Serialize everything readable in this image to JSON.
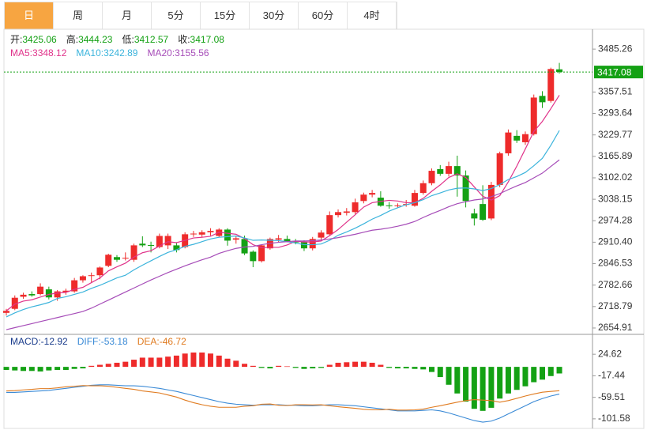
{
  "tabs": [
    "日",
    "周",
    "月",
    "5分",
    "15分",
    "30分",
    "60分",
    "4时"
  ],
  "chart_data": [
    {
      "type": "candlestick",
      "info_labels": [
        "开:",
        "高:",
        "低:",
        "收:"
      ],
      "up_color": "#ee2b2b",
      "down_color": "#14a114",
      "candles": {
        "open": [
          2700,
          2712,
          2748,
          2756,
          2756,
          2770,
          2746,
          2762,
          2764,
          2797,
          2810,
          2812,
          2840,
          2866,
          2862,
          2858,
          2906,
          2902,
          2896,
          2901,
          2901,
          2896,
          2934,
          2933,
          2940,
          2929,
          2948,
          2918,
          2920,
          2882,
          2854,
          2892,
          2918,
          2920,
          2912,
          2910,
          2892,
          2924,
          2934,
          2991,
          2998,
          3000,
          3033,
          3052,
          3043,
          3020,
          3018,
          3022,
          3019,
          3057,
          3086,
          3128,
          3114,
          3137,
          3109,
          2996,
          3024,
          2981,
          3081,
          3175,
          3227,
          3208,
          3232,
          3346,
          3331,
          3425.06
        ],
        "high": [
          2712,
          2752,
          2760,
          2764,
          2788,
          2778,
          2768,
          2772,
          2804,
          2812,
          2820,
          2838,
          2876,
          2872,
          2880,
          2906,
          2928,
          2912,
          2936,
          2936,
          2910,
          2940,
          2944,
          2946,
          2952,
          2952,
          2952,
          2928,
          2930,
          2886,
          2904,
          2924,
          2932,
          2930,
          2920,
          2916,
          2926,
          2946,
          3002,
          3008,
          3012,
          3040,
          3058,
          3066,
          3062,
          3030,
          3026,
          3036,
          3066,
          3094,
          3130,
          3140,
          3150,
          3168,
          3124,
          3010,
          3080,
          3090,
          3180,
          3246,
          3244,
          3240,
          3350,
          3360,
          3430,
          3444.23
        ],
        "low": [
          2692,
          2708,
          2742,
          2748,
          2752,
          2740,
          2736,
          2754,
          2760,
          2790,
          2790,
          2800,
          2836,
          2852,
          2856,
          2852,
          2896,
          2880,
          2892,
          2890,
          2880,
          2892,
          2926,
          2924,
          2930,
          2926,
          2900,
          2906,
          2872,
          2836,
          2850,
          2888,
          2910,
          2910,
          2904,
          2884,
          2886,
          2918,
          2930,
          2984,
          2990,
          2994,
          3026,
          3044,
          3016,
          3010,
          3012,
          3016,
          3016,
          3052,
          3080,
          3108,
          3106,
          3046,
          3014,
          2960,
          2974,
          2976,
          3074,
          3168,
          3206,
          3200,
          3228,
          3310,
          3326,
          3412.57
        ],
        "close": [
          2706,
          2745,
          2754,
          2752,
          2778,
          2746,
          2764,
          2766,
          2797,
          2809,
          2812,
          2835,
          2873,
          2858,
          2864,
          2901,
          2901,
          2900,
          2929,
          2929,
          2887,
          2934,
          2936,
          2940,
          2944,
          2948,
          2915,
          2922,
          2877,
          2854,
          2901,
          2920,
          2922,
          2911,
          2910,
          2892,
          2920,
          2939,
          2991,
          3000,
          3002,
          3029,
          3052,
          3057,
          3019,
          3018,
          3020,
          3024,
          3057,
          3086,
          3123,
          3114,
          3137,
          3109,
          3033,
          2981,
          2977,
          3081,
          3175,
          3237,
          3213,
          3232,
          3341,
          3327,
          3426,
          3417.08
        ]
      },
      "series": [
        {
          "name": "MA5:",
          "color": "#e0338a",
          "values": [
            2706,
            2726,
            2735,
            2739,
            2747,
            2755,
            2759,
            2761,
            2770,
            2776,
            2790,
            2804,
            2825,
            2837,
            2848,
            2866,
            2879,
            2885,
            2899,
            2912,
            2909,
            2916,
            2923,
            2925,
            2928,
            2940,
            2937,
            2934,
            2921,
            2903,
            2894,
            2895,
            2895,
            2902,
            2913,
            2911,
            2911,
            2914,
            2930,
            2948,
            2970,
            2992,
            3015,
            3028,
            3032,
            3035,
            3033,
            3028,
            3028,
            3041,
            3062,
            3081,
            3103,
            3114,
            3103,
            3075,
            3047,
            3036,
            3049,
            3090,
            3137,
            3188,
            3240,
            3270,
            3308,
            3348.12
          ]
        },
        {
          "name": "MA10:",
          "color": "#3cb4dc",
          "values": [
            2688,
            2700,
            2710,
            2718,
            2724,
            2731,
            2743,
            2748,
            2755,
            2762,
            2773,
            2782,
            2793,
            2804,
            2812,
            2828,
            2842,
            2855,
            2868,
            2880,
            2888,
            2898,
            2904,
            2912,
            2920,
            2925,
            2927,
            2929,
            2923,
            2916,
            2917,
            2916,
            2915,
            2912,
            2908,
            2903,
            2903,
            2905,
            2916,
            2931,
            2941,
            2952,
            2965,
            2979,
            2990,
            3003,
            3013,
            3022,
            3028,
            3037,
            3049,
            3057,
            3066,
            3071,
            3072,
            3069,
            3064,
            3070,
            3082,
            3097,
            3106,
            3118,
            3138,
            3160,
            3199,
            3242.89
          ]
        },
        {
          "name": "MA20:",
          "color": "#a64cb8",
          "values": [
            2650,
            2656,
            2662,
            2668,
            2674,
            2680,
            2686,
            2692,
            2698,
            2704,
            2714,
            2726,
            2738,
            2750,
            2762,
            2774,
            2786,
            2798,
            2809,
            2820,
            2830,
            2840,
            2849,
            2858,
            2866,
            2877,
            2885,
            2892,
            2896,
            2898,
            2903,
            2907,
            2910,
            2912,
            2914,
            2914,
            2915,
            2917,
            2920,
            2924,
            2929,
            2934,
            2940,
            2946,
            2949,
            2953,
            2958,
            2964,
            2972,
            2984,
            2995,
            3005,
            3016,
            3025,
            3031,
            3036,
            3039,
            3046,
            3055,
            3067,
            3078,
            3088,
            3102,
            3116,
            3136,
            3155.56
          ]
        }
      ],
      "ylim": [
        2636,
        3544.4
      ],
      "yticks": [
        3485.26,
        3357.51,
        3293.64,
        3229.77,
        3165.89,
        3102.02,
        3038.15,
        2974.28,
        {
          "value": 2910.4,
          "label": "2910.40"
        },
        2846.53,
        2782.66,
        2718.79,
        2654.91
      ]
    },
    {
      "type": "macd",
      "up_color": "#ee2b2b",
      "down_color": "#14a114",
      "series": [
        {
          "name": "MACD:",
          "color": "#1a3c8c",
          "values": [
            -6,
            -7,
            -8,
            -8,
            -9,
            -7,
            -6,
            -6,
            -4,
            -3,
            2,
            4,
            6,
            8,
            10,
            14,
            18,
            18,
            18,
            20,
            22,
            26,
            28,
            28,
            26,
            22,
            16,
            12,
            6,
            2,
            -2,
            -3,
            2,
            1,
            -2,
            -4,
            -3,
            -2,
            4,
            8,
            9,
            10,
            10,
            8,
            4,
            -2,
            -3,
            -3,
            -4,
            -5,
            -10,
            -20,
            -35,
            -52,
            -68,
            -82,
            -86,
            -80,
            -62,
            -52,
            -45,
            -38,
            -30,
            -25,
            -18,
            -12.92
          ]
        },
        {
          "name": "DIFF:",
          "color": "#3a8ad6",
          "values": [
            -50,
            -50,
            -49,
            -48,
            -47,
            -46,
            -44,
            -42,
            -40,
            -38,
            -36,
            -35,
            -35,
            -36,
            -37,
            -37,
            -38,
            -40,
            -42,
            -45,
            -48,
            -52,
            -56,
            -60,
            -64,
            -68,
            -71,
            -73,
            -74,
            -75,
            -74,
            -74,
            -74,
            -75,
            -75,
            -76,
            -76,
            -75,
            -74,
            -74,
            -75,
            -76,
            -78,
            -80,
            -82,
            -84,
            -86,
            -86,
            -86,
            -85,
            -84,
            -86,
            -90,
            -95,
            -100,
            -105,
            -108,
            -106,
            -100,
            -92,
            -84,
            -76,
            -68,
            -62,
            -57,
            -53.18
          ]
        },
        {
          "name": "DEA:",
          "color": "#e07b20",
          "values": [
            -47,
            -46.5,
            -45,
            -44,
            -42.5,
            -42.5,
            -41,
            -39,
            -38,
            -36.5,
            -37,
            -37,
            -38,
            -40,
            -42,
            -44,
            -47,
            -49,
            -51,
            -55,
            -59,
            -65,
            -70,
            -74,
            -77,
            -79,
            -79,
            -79,
            -77,
            -76,
            -73,
            -72.5,
            -75,
            -75.5,
            -74,
            -74,
            -74.5,
            -74,
            -76,
            -78,
            -79.5,
            -81,
            -83,
            -84,
            -84,
            -83,
            -84.5,
            -84.5,
            -84,
            -82.5,
            -79,
            -76,
            -72.5,
            -69,
            -66,
            -64,
            -65,
            -66,
            -69,
            -66,
            -61.5,
            -57,
            -53,
            -49.5,
            -48,
            -46.72
          ]
        }
      ],
      "ylim": [
        -120.3,
        63.5
      ],
      "yticks": [
        24.62,
        -17.44,
        -59.51,
        -101.58
      ]
    }
  ]
}
